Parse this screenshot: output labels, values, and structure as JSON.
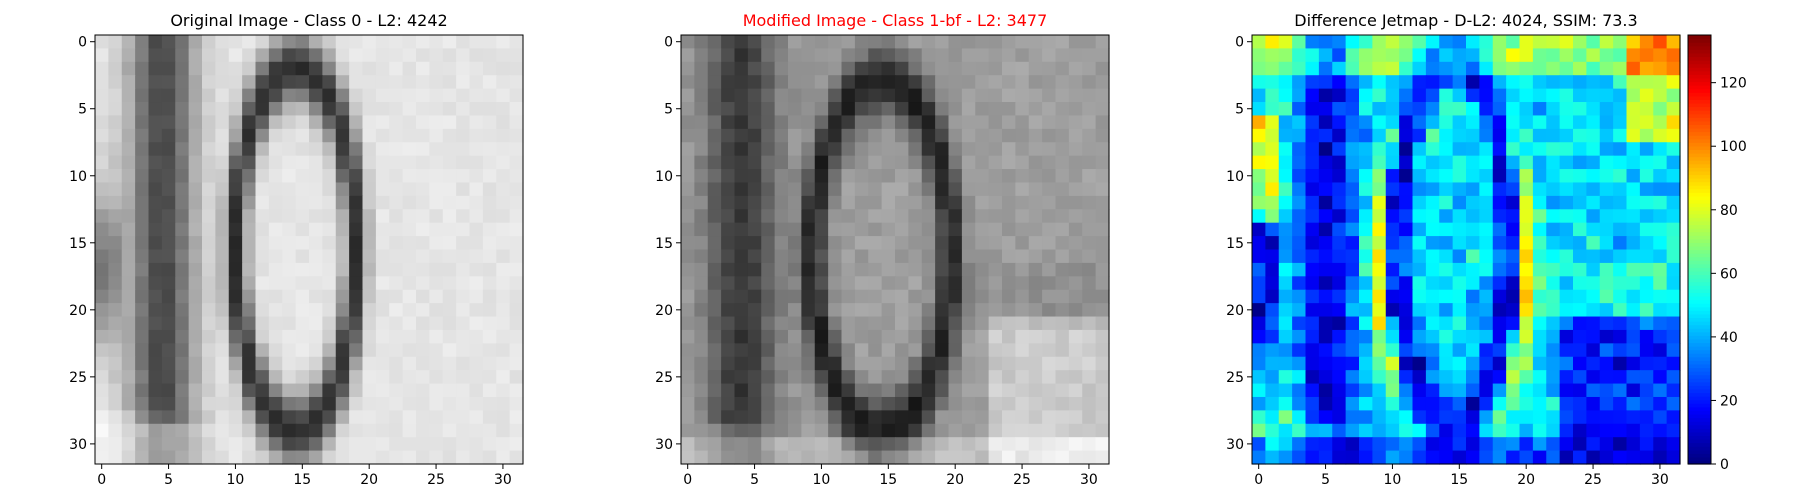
{
  "chart_data": [
    {
      "type": "heatmap",
      "colormap": "gray",
      "title": "Original Image - Class 0 - L2: 4242",
      "title_color": "#000000",
      "xticks": [
        0,
        5,
        10,
        15,
        20,
        25,
        30
      ],
      "yticks": [
        0,
        5,
        10,
        15,
        20,
        25,
        30
      ],
      "xlim": [
        -0.5,
        31.5
      ],
      "ylim": [
        31.5,
        -0.5
      ],
      "size": [
        32,
        32
      ],
      "grid": false
    },
    {
      "type": "heatmap",
      "colormap": "gray",
      "title": "Modified Image - Class 1-bf - L2: 3477",
      "title_color": "#ff0000",
      "xticks": [
        0,
        5,
        10,
        15,
        20,
        25,
        30
      ],
      "yticks": [
        0,
        5,
        10,
        15,
        20,
        25,
        30
      ],
      "xlim": [
        -0.5,
        31.5
      ],
      "ylim": [
        31.5,
        -0.5
      ],
      "size": [
        32,
        32
      ],
      "grid": false
    },
    {
      "type": "heatmap",
      "colormap": "jet",
      "title": "Difference Jetmap - D-L2: 4024, SSIM: 73.3",
      "title_color": "#000000",
      "xticks": [
        0,
        5,
        10,
        15,
        20,
        25,
        30
      ],
      "yticks": [
        0,
        5,
        10,
        15,
        20,
        25,
        30
      ],
      "xlim": [
        -0.5,
        31.5
      ],
      "ylim": [
        31.5,
        -0.5
      ],
      "size": [
        32,
        32
      ],
      "grid": false,
      "colorbar": {
        "ticks": [
          0,
          20,
          40,
          60,
          80,
          100,
          120
        ],
        "range": [
          0,
          135
        ]
      }
    }
  ]
}
